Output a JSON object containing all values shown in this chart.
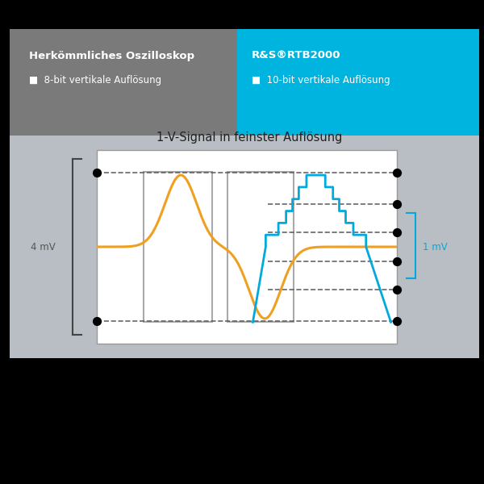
{
  "bg_color": "#000000",
  "gray_bg": "#7a7a7a",
  "cyan_bg": "#00b4e0",
  "light_gray_panel": "#b8bec4",
  "white_panel": "#ffffff",
  "orange_color": "#f0a020",
  "blue_color": "#00aadd",
  "dark_text": "#444444",
  "gray_text": "#666666",
  "title_text": "1-V-Signal in feinster Auflösung",
  "left_title": "Herkömmliches Oszilloskop",
  "left_subtitle": "8-bit vertikale Auflösung",
  "right_title": "R&S®RTB2000",
  "right_subtitle": "10-bit vertikale Auflösung",
  "label_4mv": "4 mV",
  "label_1mv": "1 mV"
}
